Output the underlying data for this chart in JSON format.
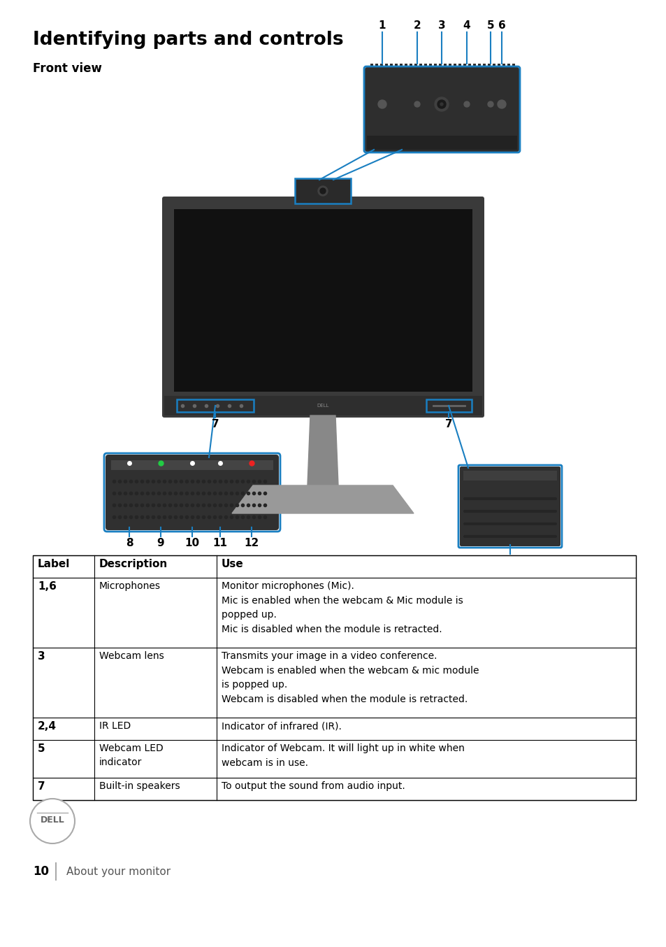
{
  "title": "Identifying parts and controls",
  "subtitle": "Front view",
  "bg_color": "#ffffff",
  "blue_color": "#1a7fc1",
  "table_header": [
    "Label",
    "Description",
    "Use"
  ],
  "table_rows": [
    {
      "label": "1,6",
      "desc": "Microphones",
      "use": "Monitor microphones (Mic).\nMic is enabled when the webcam & Mic module is\npopped up.\nMic is disabled when the module is retracted."
    },
    {
      "label": "3",
      "desc": "Webcam lens",
      "use": "Transmits your image in a video conference.\nWebcam is enabled when the webcam & mic module\nis popped up.\nWebcam is disabled when the module is retracted."
    },
    {
      "label": "2,4",
      "desc": "IR LED",
      "use": "Indicator of infrared (IR)."
    },
    {
      "label": "5",
      "desc": "Webcam LED\nindicator",
      "use": "Indicator of Webcam. It will light up in white when\nwebcam is in use."
    },
    {
      "label": "7",
      "desc": "Built-in speakers",
      "use": "To output the sound from audio input."
    }
  ],
  "footer_page": "10",
  "footer_text": "About your monitor",
  "num_labels": [
    "1",
    "2",
    "3",
    "4",
    "5",
    "6"
  ],
  "spk_labels": [
    "8",
    "9",
    "10",
    "11",
    "12"
  ]
}
